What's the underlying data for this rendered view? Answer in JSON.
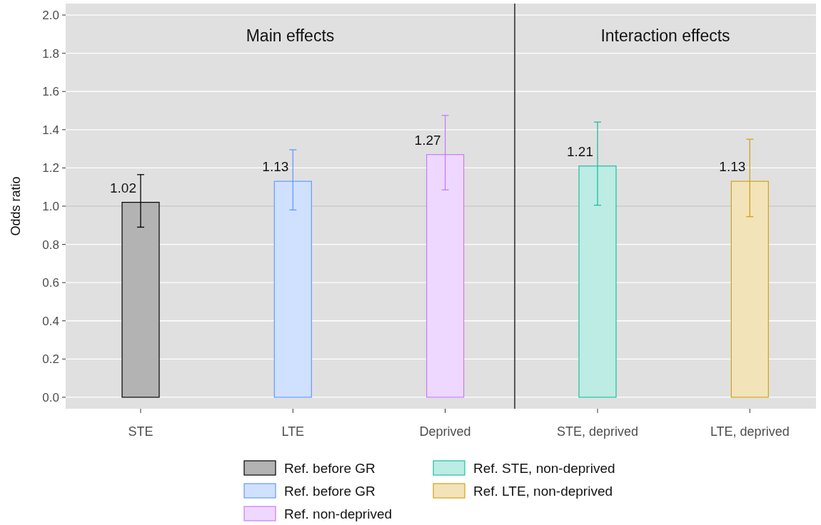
{
  "chart_data": [
    {
      "type": "bar",
      "title": "Main effects",
      "ylabel": "Odds ratio",
      "categories": [
        "STE",
        "LTE",
        "Deprived"
      ],
      "series": [
        {
          "name": "Ref. before GR",
          "color": "#000000",
          "values": [
            1.02,
            null,
            null
          ],
          "errors": [
            [
              0.89,
              1.165
            ],
            null,
            null
          ],
          "value_labels": [
            "1.02",
            null,
            null
          ]
        },
        {
          "name": "Ref. before GR",
          "color": "#619cff",
          "values": [
            null,
            1.13,
            null
          ],
          "errors": [
            null,
            [
              0.98,
              1.295
            ],
            null
          ],
          "value_labels": [
            null,
            "1.13",
            null
          ]
        },
        {
          "name": "Ref. non-deprived",
          "color": "#c77cff",
          "values": [
            null,
            null,
            1.27
          ],
          "errors": [
            null,
            null,
            [
              1.085,
              1.475
            ]
          ],
          "value_labels": [
            null,
            null,
            "1.27"
          ]
        }
      ],
      "ylim": [
        -0.06,
        2.06
      ],
      "yticks": [
        {
          "value": 0,
          "label": "0.0"
        },
        {
          "value": 0.2,
          "label": "0.2"
        },
        {
          "value": 0.4,
          "label": "0.4"
        },
        {
          "value": 0.6,
          "label": "0.6"
        },
        {
          "value": 0.8,
          "label": "0.8"
        },
        {
          "value": 1,
          "label": "1.0"
        },
        {
          "value": 1.2,
          "label": "1.2"
        },
        {
          "value": 1.4,
          "label": "1.4"
        },
        {
          "value": 1.6,
          "label": "1.6"
        },
        {
          "value": 1.8,
          "label": "1.8"
        },
        {
          "value": 2,
          "label": "2.0"
        }
      ],
      "ref_lines": [
        {
          "axis": "y",
          "value": 1,
          "color": "#aaaaaa"
        }
      ],
      "grid": "y",
      "legend": "bottom"
    },
    {
      "type": "bar",
      "title": "Interaction effects",
      "categories": [
        "STE, deprived",
        "LTE, deprived"
      ],
      "series": [
        {
          "name": "Ref. STE, non-deprived",
          "color": "#1ebfa5",
          "values": [
            1.21,
            null
          ],
          "errors": [
            [
              1.005,
              1.44
            ],
            null
          ],
          "value_labels": [
            "1.21",
            null
          ]
        },
        {
          "name": "Ref. LTE, non-deprived",
          "color": "#d4a017",
          "values": [
            null,
            1.13
          ],
          "errors": [
            null,
            [
              0.945,
              1.35
            ]
          ],
          "value_labels": [
            null,
            "1.13"
          ]
        }
      ],
      "ylim": [
        -0.06,
        2.06
      ],
      "yticks": [
        0,
        0.2,
        0.4,
        0.6,
        0.8,
        1,
        1.2,
        1.4,
        1.6,
        1.8,
        2
      ],
      "ref_lines": [
        {
          "axis": "y",
          "value": 1,
          "color": "#aaaaaa"
        }
      ],
      "tick_labels": "x",
      "grid": "y",
      "legend": "bottom"
    }
  ]
}
